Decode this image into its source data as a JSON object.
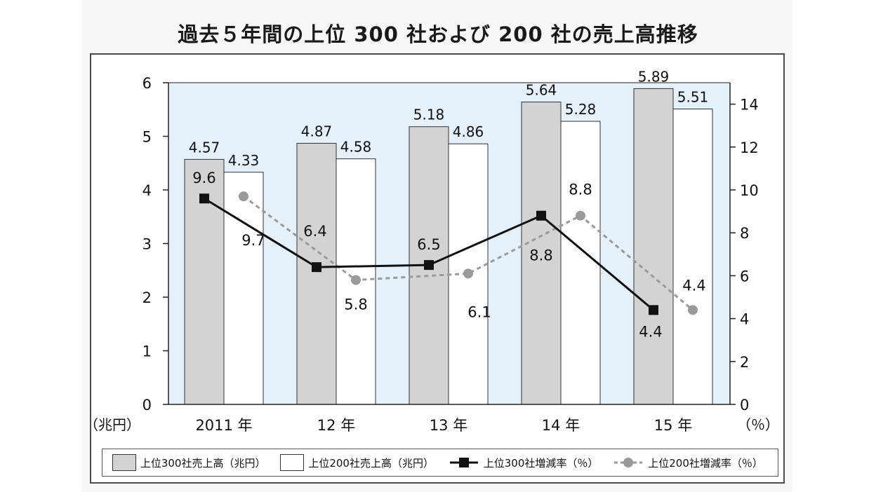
{
  "title": "過去５年間の上位 300 社および 200 社の売上高推移",
  "left_unit": "（兆円）",
  "right_unit": "（％）",
  "legend": {
    "top300_sales": "上位300社売上高（兆円）",
    "top200_sales": "上位200社売上高（兆円）",
    "top300_growth": "上位300社増減率（％）",
    "top200_growth": "上位200社増減率（％）"
  },
  "colors": {
    "plot_bg": "#e4f0fa",
    "top300_bar": "#d3d3d3",
    "top200_bar": "#ffffff",
    "top300_line": "#111111",
    "top200_line": "#9a9a9a"
  },
  "chart_data": {
    "type": "bar",
    "categories": [
      "2011 年",
      "12 年",
      "13 年",
      "14 年",
      "15 年"
    ],
    "y_left": {
      "ticks": [
        "0",
        "1",
        "2",
        "3",
        "4",
        "5",
        "6"
      ],
      "ylim": [
        0,
        6
      ]
    },
    "y_right": {
      "ticks": [
        "0",
        "2",
        "4",
        "6",
        "8",
        "10",
        "12",
        "14"
      ],
      "ylim": [
        0,
        15
      ]
    },
    "series": [
      {
        "name": "上位300社売上高（兆円）",
        "type": "bar",
        "axis": "left",
        "values": [
          4.57,
          4.87,
          5.18,
          5.64,
          5.89
        ],
        "labels": [
          "4.57",
          "4.87",
          "5.18",
          "5.64",
          "5.89"
        ]
      },
      {
        "name": "上位200社売上高（兆円）",
        "type": "bar",
        "axis": "left",
        "values": [
          4.33,
          4.58,
          4.86,
          5.28,
          5.51
        ],
        "labels": [
          "4.33",
          "4.58",
          "4.86",
          "5.28",
          "5.51"
        ]
      },
      {
        "name": "上位300社増減率（％）",
        "type": "line",
        "axis": "right",
        "values": [
          9.6,
          6.4,
          6.5,
          8.8,
          4.4
        ],
        "labels": [
          "9.6",
          "6.4",
          "6.5",
          "8.8",
          "4.4"
        ]
      },
      {
        "name": "上位200社増減率（％）",
        "type": "line",
        "axis": "right",
        "dashed": true,
        "values": [
          9.7,
          5.8,
          6.1,
          8.8,
          4.4
        ],
        "labels": [
          "9.7",
          "5.8",
          "6.1",
          "8.8",
          "4.4"
        ]
      }
    ],
    "grid": false,
    "legend_position": "bottom"
  }
}
